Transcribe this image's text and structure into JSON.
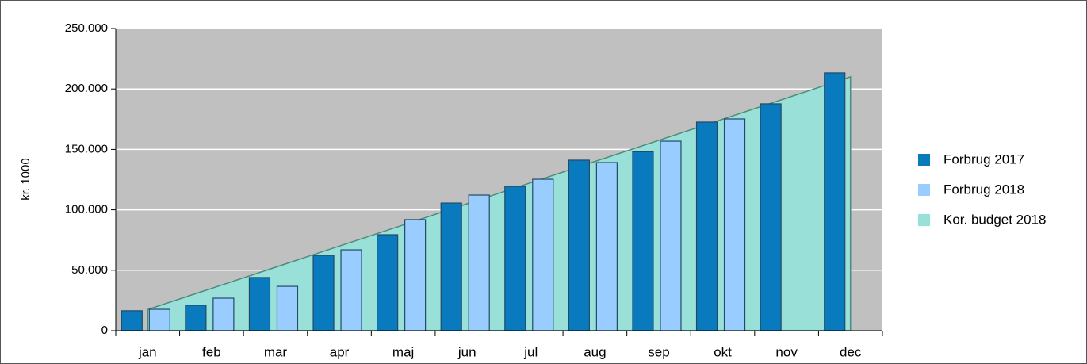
{
  "chart_data": {
    "type": "bar",
    "y_label": "kr. 1000",
    "categories": [
      "jan",
      "feb",
      "mar",
      "apr",
      "maj",
      "jun",
      "jul",
      "aug",
      "sep",
      "okt",
      "nov",
      "dec"
    ],
    "series": [
      {
        "name": "Forbrug 2017",
        "color": "#0a7abf",
        "type": "bar",
        "values": [
          16500,
          21000,
          44000,
          62300,
          79400,
          105600,
          119400,
          141100,
          148000,
          172600,
          187700,
          213300
        ]
      },
      {
        "name": "Forbrug 2018",
        "color": "#99ccff",
        "type": "bar",
        "values": [
          17700,
          26900,
          36700,
          66900,
          91900,
          112200,
          125300,
          139100,
          156800,
          175200,
          null,
          null
        ]
      },
      {
        "name": "Kor. budget 2018",
        "color": "#99e0d8",
        "type": "area",
        "values": [
          17500,
          35000,
          52500,
          70000,
          87500,
          105000,
          122500,
          140000,
          157500,
          175000,
          192500,
          210000
        ]
      }
    ],
    "ylim": [
      0,
      250000
    ],
    "yticks": [
      0,
      {
        "value": 50000,
        "label": "50.000"
      },
      {
        "value": 100000,
        "label": "100.000"
      },
      {
        "value": 150000,
        "label": "150.000"
      },
      {
        "value": 200000,
        "label": "200.000"
      },
      {
        "value": 250000,
        "label": "250.000"
      }
    ],
    "grid": true,
    "legend": "right"
  }
}
